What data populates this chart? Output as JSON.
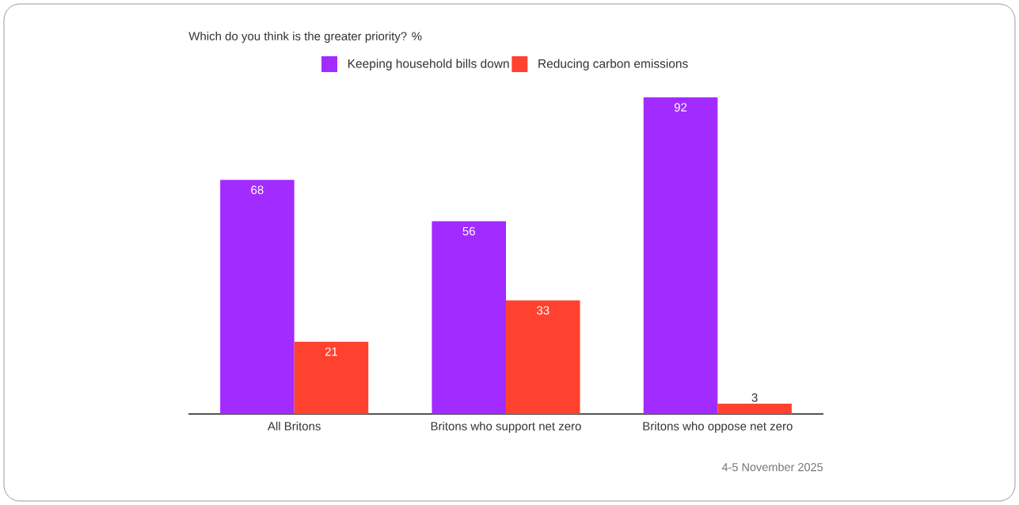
{
  "chart_data": {
    "type": "bar",
    "title": "Which do you think is the greater priority? %",
    "categories": [
      "All Britons",
      "Britons who support net zero",
      "Britons who oppose net zero"
    ],
    "series": [
      {
        "name": "Keeping household bills down",
        "color": "#a22bff",
        "values": [
          68,
          56,
          92
        ]
      },
      {
        "name": "Reducing carbon emissions",
        "color": "#ff4130",
        "values": [
          21,
          33,
          3
        ]
      }
    ],
    "data_labels": true,
    "legend": "top",
    "annotations": [
      "4-5 November 2025"
    ]
  }
}
